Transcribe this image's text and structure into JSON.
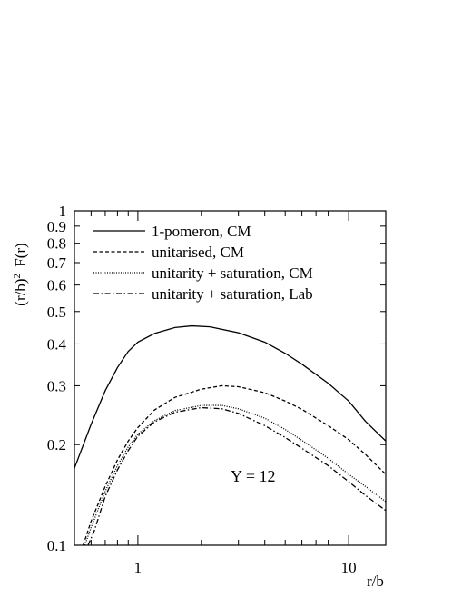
{
  "chart_data": {
    "type": "line",
    "xscale": "log",
    "yscale": "log",
    "xlim": [
      0.5,
      15
    ],
    "ylim": [
      0.1,
      1
    ],
    "xlabel": "r/b",
    "ylabel": "(r/b)² F(r)",
    "x_tick_labels": [
      "1",
      "10"
    ],
    "y_tick_labels": [
      "0.1",
      "0.2",
      "0.3",
      "0.4",
      "0.5",
      "0.6",
      "0.7",
      "0.8",
      "0.9",
      "1"
    ],
    "annotation": "Y = 12",
    "legend_position": "top-left",
    "series": [
      {
        "name": "1-pomeron, CM",
        "dash": "solid",
        "points": [
          [
            0.5,
            0.17
          ],
          [
            0.6,
            0.23
          ],
          [
            0.7,
            0.29
          ],
          [
            0.8,
            0.34
          ],
          [
            0.9,
            0.38
          ],
          [
            1.0,
            0.405
          ],
          [
            1.2,
            0.43
          ],
          [
            1.5,
            0.448
          ],
          [
            1.8,
            0.453
          ],
          [
            2.2,
            0.45
          ],
          [
            3.0,
            0.432
          ],
          [
            4.0,
            0.405
          ],
          [
            5.0,
            0.375
          ],
          [
            6.0,
            0.348
          ],
          [
            8.0,
            0.305
          ],
          [
            10.0,
            0.27
          ],
          [
            12.0,
            0.235
          ],
          [
            15.0,
            0.205
          ]
        ]
      },
      {
        "name": "unitarised, CM",
        "dash": "dashed",
        "points": [
          [
            0.55,
            0.1
          ],
          [
            0.6,
            0.118
          ],
          [
            0.7,
            0.15
          ],
          [
            0.8,
            0.18
          ],
          [
            0.9,
            0.205
          ],
          [
            1.0,
            0.225
          ],
          [
            1.2,
            0.254
          ],
          [
            1.5,
            0.277
          ],
          [
            2.0,
            0.293
          ],
          [
            2.5,
            0.3
          ],
          [
            3.0,
            0.298
          ],
          [
            4.0,
            0.286
          ],
          [
            5.0,
            0.27
          ],
          [
            6.0,
            0.255
          ],
          [
            8.0,
            0.228
          ],
          [
            10.0,
            0.207
          ],
          [
            12.0,
            0.187
          ],
          [
            15.0,
            0.163
          ]
        ]
      },
      {
        "name": "unitarity + saturation, CM",
        "dash": "dotted",
        "points": [
          [
            0.56,
            0.1
          ],
          [
            0.6,
            0.113
          ],
          [
            0.7,
            0.145
          ],
          [
            0.8,
            0.173
          ],
          [
            0.9,
            0.197
          ],
          [
            1.0,
            0.215
          ],
          [
            1.2,
            0.236
          ],
          [
            1.5,
            0.253
          ],
          [
            2.0,
            0.262
          ],
          [
            2.5,
            0.262
          ],
          [
            3.0,
            0.256
          ],
          [
            4.0,
            0.24
          ],
          [
            5.0,
            0.222
          ],
          [
            6.0,
            0.206
          ],
          [
            8.0,
            0.182
          ],
          [
            10.0,
            0.163
          ],
          [
            12.0,
            0.15
          ],
          [
            15.0,
            0.135
          ]
        ]
      },
      {
        "name": "unitarity + saturation, Lab",
        "dash": "dashdot",
        "points": [
          [
            0.58,
            0.1
          ],
          [
            0.62,
            0.11
          ],
          [
            0.7,
            0.14
          ],
          [
            0.8,
            0.168
          ],
          [
            0.9,
            0.192
          ],
          [
            1.0,
            0.212
          ],
          [
            1.2,
            0.234
          ],
          [
            1.5,
            0.25
          ],
          [
            2.0,
            0.258
          ],
          [
            2.5,
            0.256
          ],
          [
            3.0,
            0.248
          ],
          [
            4.0,
            0.228
          ],
          [
            5.0,
            0.21
          ],
          [
            6.0,
            0.195
          ],
          [
            8.0,
            0.173
          ],
          [
            10.0,
            0.155
          ],
          [
            12.0,
            0.141
          ],
          [
            15.0,
            0.127
          ]
        ]
      }
    ]
  }
}
